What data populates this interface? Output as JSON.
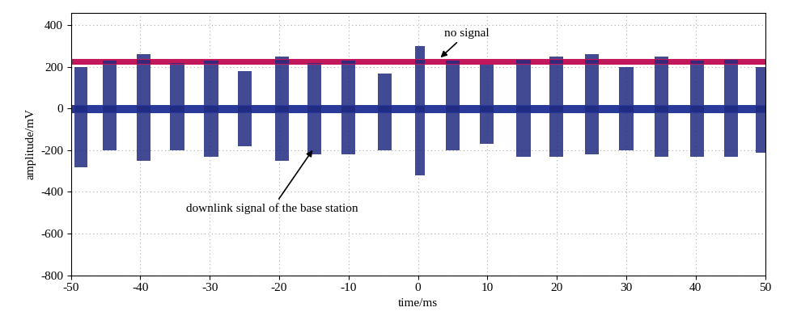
{
  "chart_data": {
    "type": "line",
    "xlabel": "time/ms",
    "ylabel": "amplitude/mV",
    "xlim": [
      -50,
      50
    ],
    "ylim": [
      -800,
      460
    ],
    "xticks": [
      -50,
      -40,
      -30,
      -20,
      -10,
      0,
      10,
      20,
      30,
      40,
      50
    ],
    "yticks": [
      -800,
      -600,
      -400,
      -200,
      0,
      200,
      400
    ],
    "grid": true,
    "series": [
      {
        "color": "#c2185b",
        "x": [
          -50,
          50
        ],
        "min": [
          214,
          214
        ],
        "max": [
          238,
          238
        ]
      },
      {
        "color": "#2a3a9a",
        "x": [
          -50,
          50
        ],
        "min": [
          -18,
          -18
        ],
        "max": [
          18,
          18
        ]
      }
    ],
    "bursts": {
      "color": "#1f2a80",
      "start": [
        -49.5,
        -45.4,
        -40.5,
        -35.7,
        -30.8,
        -26.0,
        -20.6,
        -15.9,
        -11.0,
        -5.8,
        -0.4,
        4.0,
        8.9,
        14.2,
        18.9,
        24.0,
        29.0,
        34.1,
        39.2,
        44.1,
        48.6
      ],
      "end": [
        -47.6,
        -43.4,
        -38.5,
        -33.7,
        -28.8,
        -24.0,
        -18.6,
        -13.9,
        -9.0,
        -3.8,
        1.0,
        6.0,
        10.9,
        16.2,
        20.9,
        26.0,
        31.0,
        36.1,
        41.2,
        46.1,
        50.0
      ],
      "min": [
        -280,
        -200,
        -250,
        -200,
        -230,
        -180,
        -250,
        -220,
        -220,
        -200,
        -320,
        -200,
        -170,
        -230,
        -230,
        -220,
        -200,
        -230,
        -230,
        -230,
        -210
      ],
      "max": [
        200,
        230,
        260,
        220,
        230,
        180,
        250,
        220,
        230,
        170,
        300,
        230,
        210,
        240,
        250,
        260,
        200,
        250,
        230,
        240,
        200
      ]
    },
    "annotations": [
      {
        "text": "no signal",
        "x": 3,
        "y": 238,
        "text_x": 7,
        "text_y": 360
      },
      {
        "text": "downlink signal of the base station",
        "x": -15,
        "y": -190,
        "text_x": -21,
        "text_y": -480
      }
    ]
  }
}
